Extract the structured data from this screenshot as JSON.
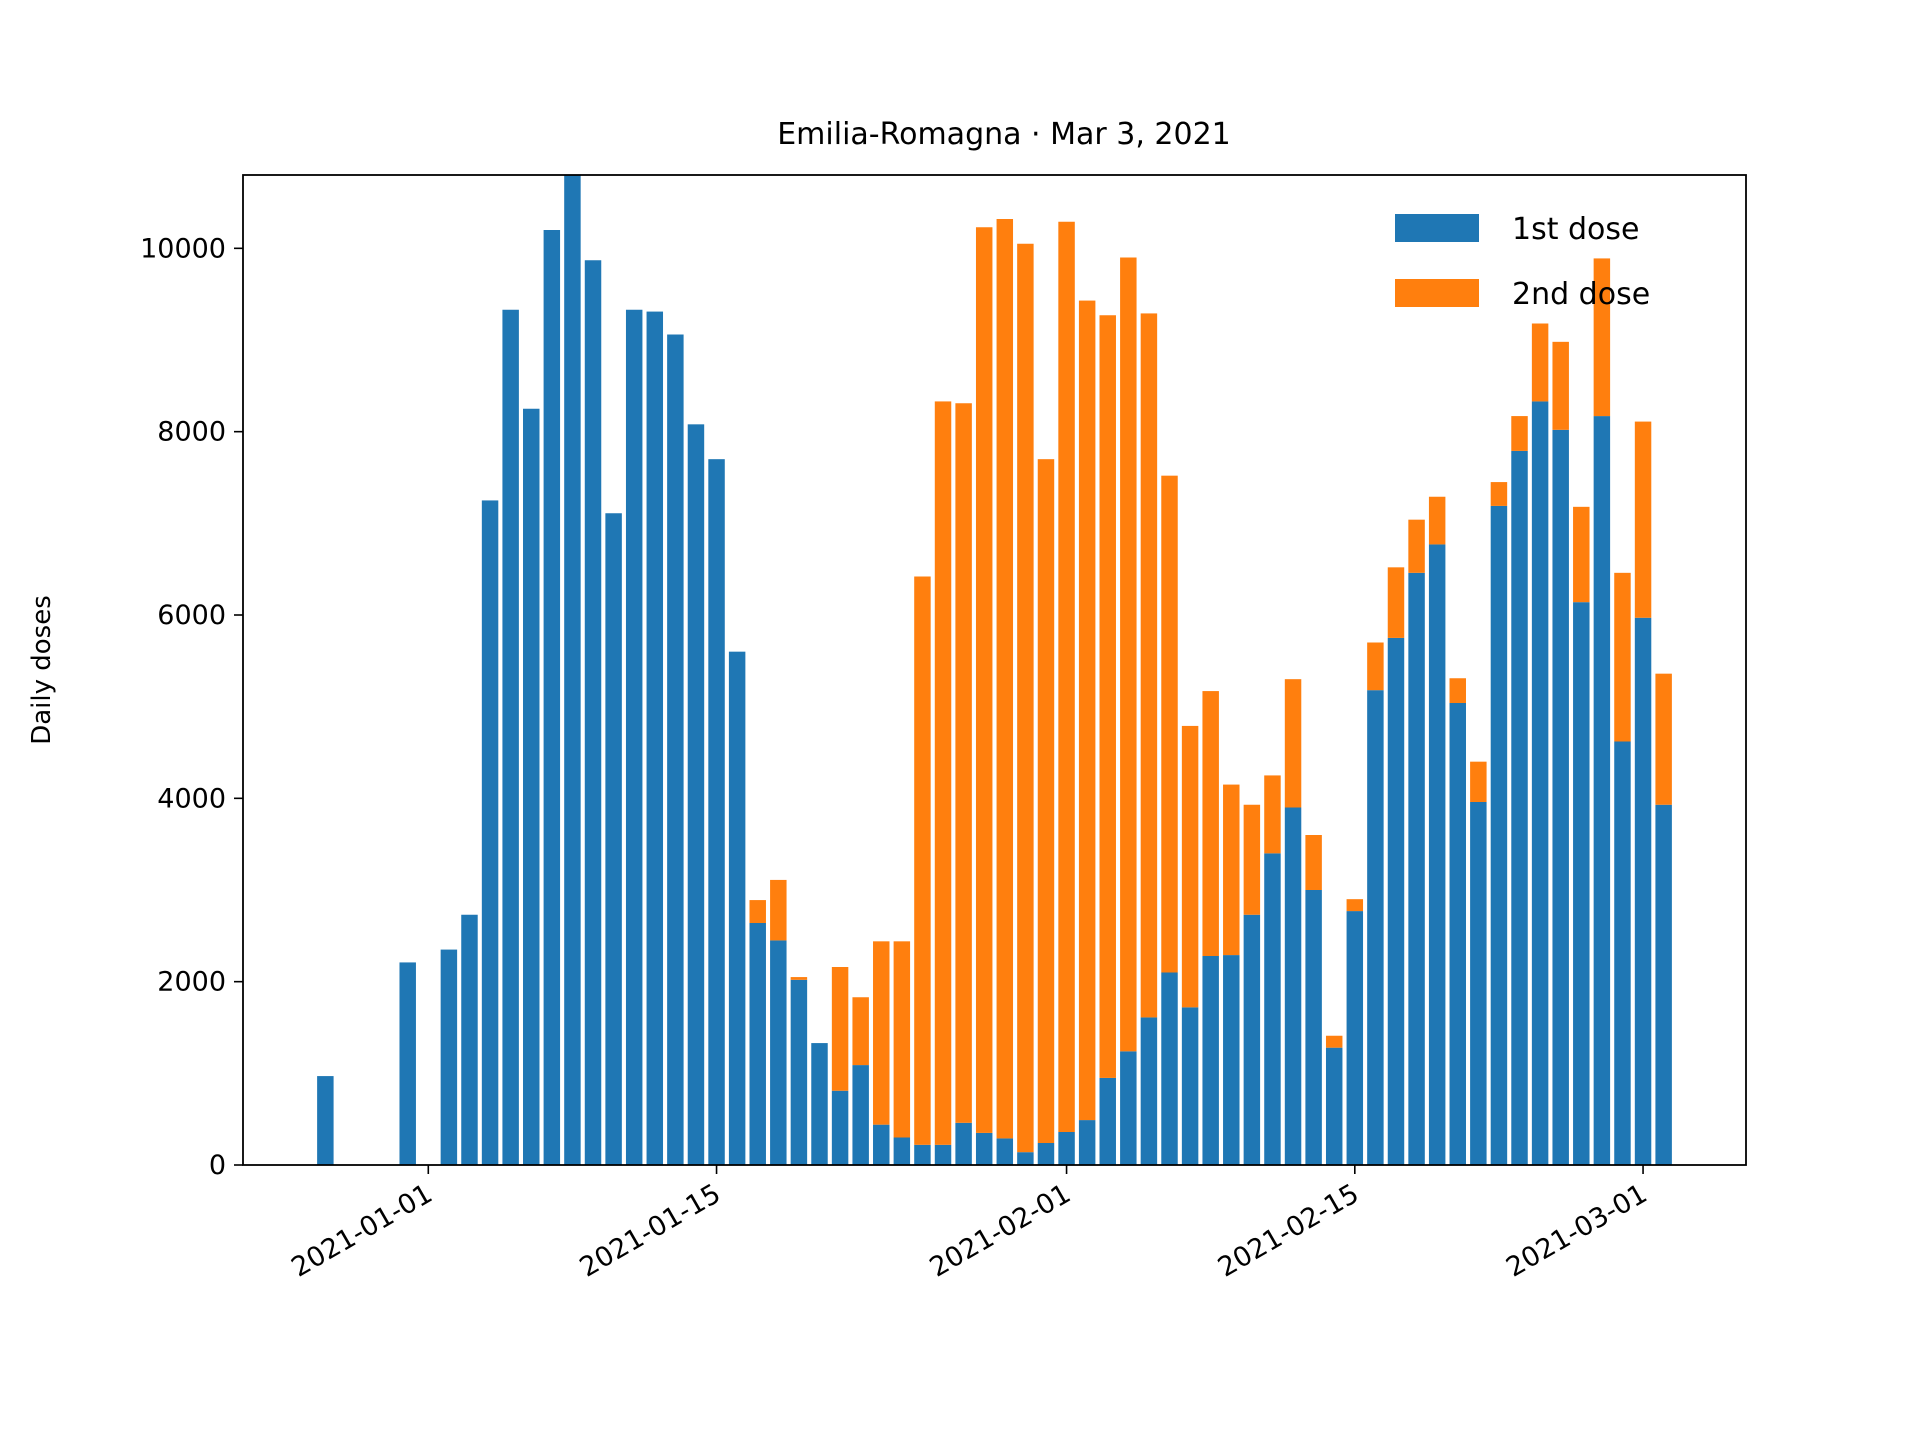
{
  "chart_data": {
    "type": "bar",
    "stacked": true,
    "title": "Emilia-Romagna · Mar 3, 2021",
    "xlabel": "",
    "ylabel": "Daily doses",
    "ylim": [
      0,
      10800
    ],
    "xlim": [
      "2020-12-23",
      "2021-03-06"
    ],
    "yticks": [
      0,
      2000,
      4000,
      6000,
      8000,
      10000
    ],
    "ytick_labels": [
      "0",
      "2000",
      "4000",
      "6000",
      "8000",
      "10000"
    ],
    "xticks": [
      "2021-01-01",
      "2021-01-15",
      "2021-02-01",
      "2021-02-15",
      "2021-03-01"
    ],
    "xtick_labels": [
      "2021-01-01",
      "2021-01-15",
      "2021-02-01",
      "2021-02-15",
      "2021-03-01"
    ],
    "grid": false,
    "legend_position": "top-right",
    "colors": {
      "first_dose": "#1f77b4",
      "second_dose": "#ff7f0e"
    },
    "x": [
      "2020-12-27",
      "2020-12-28",
      "2020-12-29",
      "2020-12-30",
      "2020-12-31",
      "2021-01-01",
      "2021-01-02",
      "2021-01-03",
      "2021-01-04",
      "2021-01-05",
      "2021-01-06",
      "2021-01-07",
      "2021-01-08",
      "2021-01-09",
      "2021-01-10",
      "2021-01-11",
      "2021-01-12",
      "2021-01-13",
      "2021-01-14",
      "2021-01-15",
      "2021-01-16",
      "2021-01-17",
      "2021-01-18",
      "2021-01-19",
      "2021-01-20",
      "2021-01-21",
      "2021-01-22",
      "2021-01-23",
      "2021-01-24",
      "2021-01-25",
      "2021-01-26",
      "2021-01-27",
      "2021-01-28",
      "2021-01-29",
      "2021-01-30",
      "2021-01-31",
      "2021-02-01",
      "2021-02-02",
      "2021-02-03",
      "2021-02-04",
      "2021-02-05",
      "2021-02-06",
      "2021-02-07",
      "2021-02-08",
      "2021-02-09",
      "2021-02-10",
      "2021-02-11",
      "2021-02-12",
      "2021-02-13",
      "2021-02-14",
      "2021-02-15",
      "2021-02-16",
      "2021-02-17",
      "2021-02-18",
      "2021-02-19",
      "2021-02-20",
      "2021-02-21",
      "2021-02-22",
      "2021-02-23",
      "2021-02-24",
      "2021-02-25",
      "2021-02-26",
      "2021-02-27",
      "2021-02-28",
      "2021-03-01",
      "2021-03-02"
    ],
    "series": [
      {
        "name": "1st dose",
        "color": "#1f77b4",
        "values": [
          970,
          0,
          0,
          0,
          2210,
          0,
          2350,
          2730,
          7250,
          9330,
          8250,
          10200,
          10800,
          9870,
          7110,
          9330,
          9310,
          9060,
          8080,
          7700,
          5600,
          2640,
          2450,
          2020,
          1330,
          810,
          1090,
          440,
          300,
          220,
          220,
          460,
          350,
          290,
          140,
          240,
          360,
          490,
          950,
          1240,
          1610,
          2100,
          1720,
          2280,
          2290,
          2730,
          3400,
          3900,
          3000,
          1280,
          2770,
          5180,
          5750,
          6460,
          6770,
          5040,
          3960,
          7190,
          7790,
          8330,
          8020,
          6140,
          8170,
          4620,
          5970,
          3930
        ]
      },
      {
        "name": "2nd dose",
        "color": "#ff7f0e",
        "values": [
          0,
          0,
          0,
          0,
          0,
          0,
          0,
          0,
          0,
          0,
          0,
          0,
          0,
          0,
          0,
          0,
          0,
          0,
          0,
          0,
          0,
          250,
          660,
          30,
          0,
          1350,
          740,
          2000,
          2140,
          6200,
          8110,
          7850,
          9880,
          10030,
          9910,
          7460,
          9930,
          8940,
          8320,
          8660,
          7680,
          5420,
          3070,
          2890,
          1860,
          1200,
          850,
          1400,
          600,
          130,
          130,
          520,
          770,
          580,
          520,
          270,
          440,
          260,
          380,
          850,
          960,
          1040,
          1720,
          1840,
          2140,
          1430
        ]
      }
    ]
  }
}
